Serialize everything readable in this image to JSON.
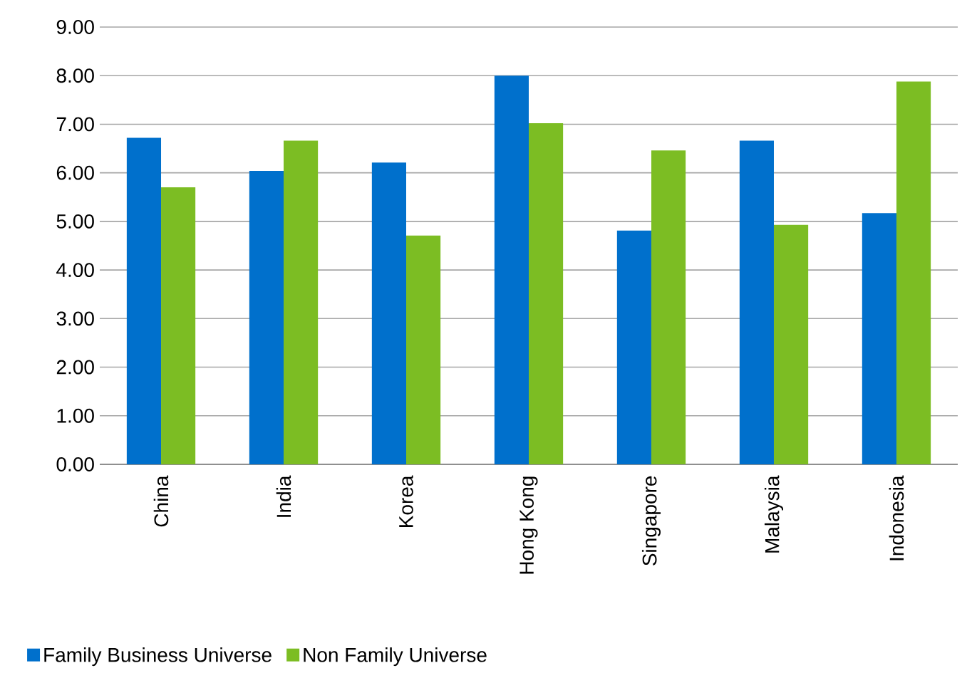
{
  "chart_data": {
    "type": "bar",
    "categories": [
      "China",
      "India",
      "Korea",
      "Hong Kong",
      "Singapore",
      "Malaysia",
      "Indonesia"
    ],
    "series": [
      {
        "name": "Family Business Universe",
        "color": "#0070cc",
        "values": [
          6.72,
          6.04,
          6.21,
          8.0,
          4.81,
          6.66,
          5.17
        ]
      },
      {
        "name": "Non Family Universe",
        "color": "#7cbd23",
        "values": [
          5.7,
          6.66,
          4.71,
          7.02,
          6.46,
          4.93,
          7.88
        ]
      }
    ],
    "ylim": [
      0,
      9
    ],
    "yticks": [
      {
        "value": 0,
        "label": "0.00"
      },
      {
        "value": 1,
        "label": "1.00"
      },
      {
        "value": 2,
        "label": "2.00"
      },
      {
        "value": 3,
        "label": "3.00"
      },
      {
        "value": 4,
        "label": "4.00"
      },
      {
        "value": 5,
        "label": "5.00"
      },
      {
        "value": 6,
        "label": "6.00"
      },
      {
        "value": 7,
        "label": "7.00"
      },
      {
        "value": 8,
        "label": "8.00"
      },
      {
        "value": 9,
        "label": "9.00"
      }
    ],
    "grid": "y",
    "legend": "bottom left"
  }
}
